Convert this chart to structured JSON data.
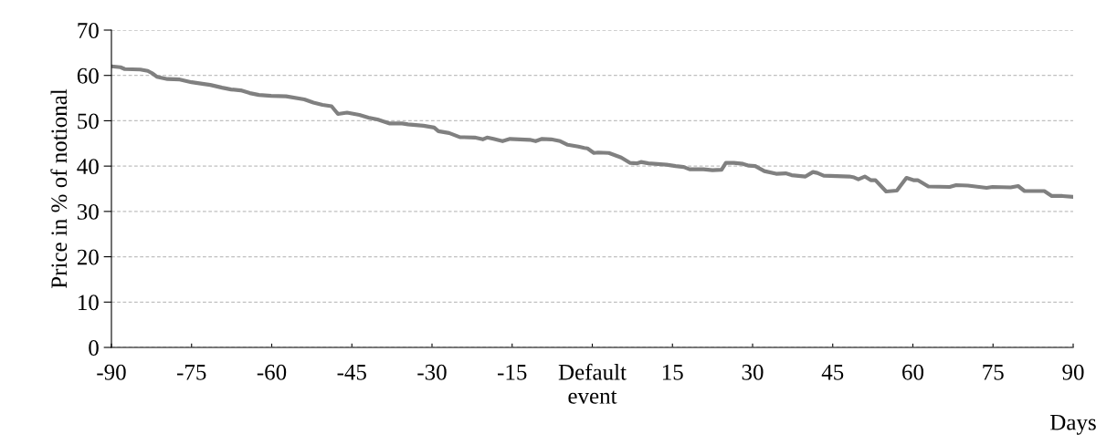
{
  "chart_data": {
    "type": "line",
    "xlabel": "Days",
    "ylabel": "Price in % of notional",
    "x": [
      -90,
      -88.3,
      -87.5,
      -84.6,
      -83.2,
      -82.4,
      -81.5,
      -79.5,
      -77.2,
      -75.0,
      -72.7,
      -71.5,
      -69.3,
      -67.6,
      -65.8,
      -64.1,
      -62.4,
      -60.1,
      -57.3,
      -53.9,
      -52.2,
      -50.5,
      -48.8,
      -47.6,
      -45.9,
      -43.6,
      -41.9,
      -40.2,
      -37.9,
      -35.6,
      -34.5,
      -31.6,
      -29.6,
      -28.8,
      -26.8,
      -24.8,
      -22.0,
      -20.5,
      -19.7,
      -18.5,
      -16.8,
      -15.4,
      -11.7,
      -10.6,
      -9.4,
      -7.7,
      -6.0,
      -4.6,
      -2.6,
      -1.5,
      -0.9,
      0.3,
      1.1,
      3.1,
      5.4,
      7.1,
      8.3,
      9.1,
      10.5,
      13.9,
      15.6,
      17.1,
      18.2,
      20.8,
      22.5,
      24.2,
      25.0,
      26.5,
      28.2,
      29.3,
      30.5,
      32.2,
      34.4,
      36.2,
      37.3,
      39.9,
      41.3,
      42.1,
      43.3,
      48.1,
      49.0,
      49.8,
      51.0,
      52.1,
      53.0,
      55.0,
      57.0,
      58.8,
      60.1,
      60.9,
      62.9,
      66.9,
      68.1,
      70.3,
      73.8,
      74.9,
      78.3,
      79.7,
      80.9,
      84.6,
      86.0,
      88.0,
      90.0
    ],
    "series": [
      {
        "color": "#808080",
        "values": [
          62.0,
          61.8,
          61.4,
          61.3,
          61.0,
          60.5,
          59.7,
          59.2,
          59.1,
          58.5,
          58.1,
          57.9,
          57.3,
          56.9,
          56.7,
          56.1,
          55.7,
          55.5,
          55.4,
          54.7,
          54.0,
          53.5,
          53.2,
          51.5,
          51.8,
          51.3,
          50.7,
          50.3,
          49.4,
          49.4,
          49.2,
          48.9,
          48.5,
          47.7,
          47.3,
          46.4,
          46.3,
          45.9,
          46.3,
          46.0,
          45.5,
          46.0,
          45.8,
          45.5,
          46.0,
          45.9,
          45.5,
          44.7,
          44.3,
          44.0,
          43.9,
          42.9,
          43.0,
          42.9,
          41.9,
          40.7,
          40.6,
          40.9,
          40.6,
          40.3,
          40.0,
          39.8,
          39.3,
          39.3,
          39.1,
          39.2,
          40.7,
          40.7,
          40.5,
          40.1,
          40.0,
          38.9,
          38.3,
          38.4,
          38.0,
          37.7,
          38.7,
          38.5,
          37.9,
          37.7,
          37.5,
          37.1,
          37.7,
          36.9,
          36.9,
          34.4,
          34.6,
          37.4,
          36.9,
          36.9,
          35.5,
          35.4,
          35.8,
          35.7,
          35.2,
          35.4,
          35.3,
          35.6,
          34.5,
          34.5,
          33.4,
          33.4,
          33.2
        ]
      }
    ],
    "xlim": [
      -90,
      90
    ],
    "xticks": [
      -90,
      -75,
      -60,
      -45,
      -30,
      -15,
      {
        "value": 0,
        "label": "Default\nevent"
      },
      15,
      30,
      45,
      60,
      75,
      90
    ],
    "ylim": [
      0,
      70
    ],
    "yticks": [
      0,
      10,
      20,
      30,
      40,
      50,
      60,
      70
    ],
    "grid": "y",
    "marker": "none",
    "line_style": "solid",
    "legend": false
  }
}
